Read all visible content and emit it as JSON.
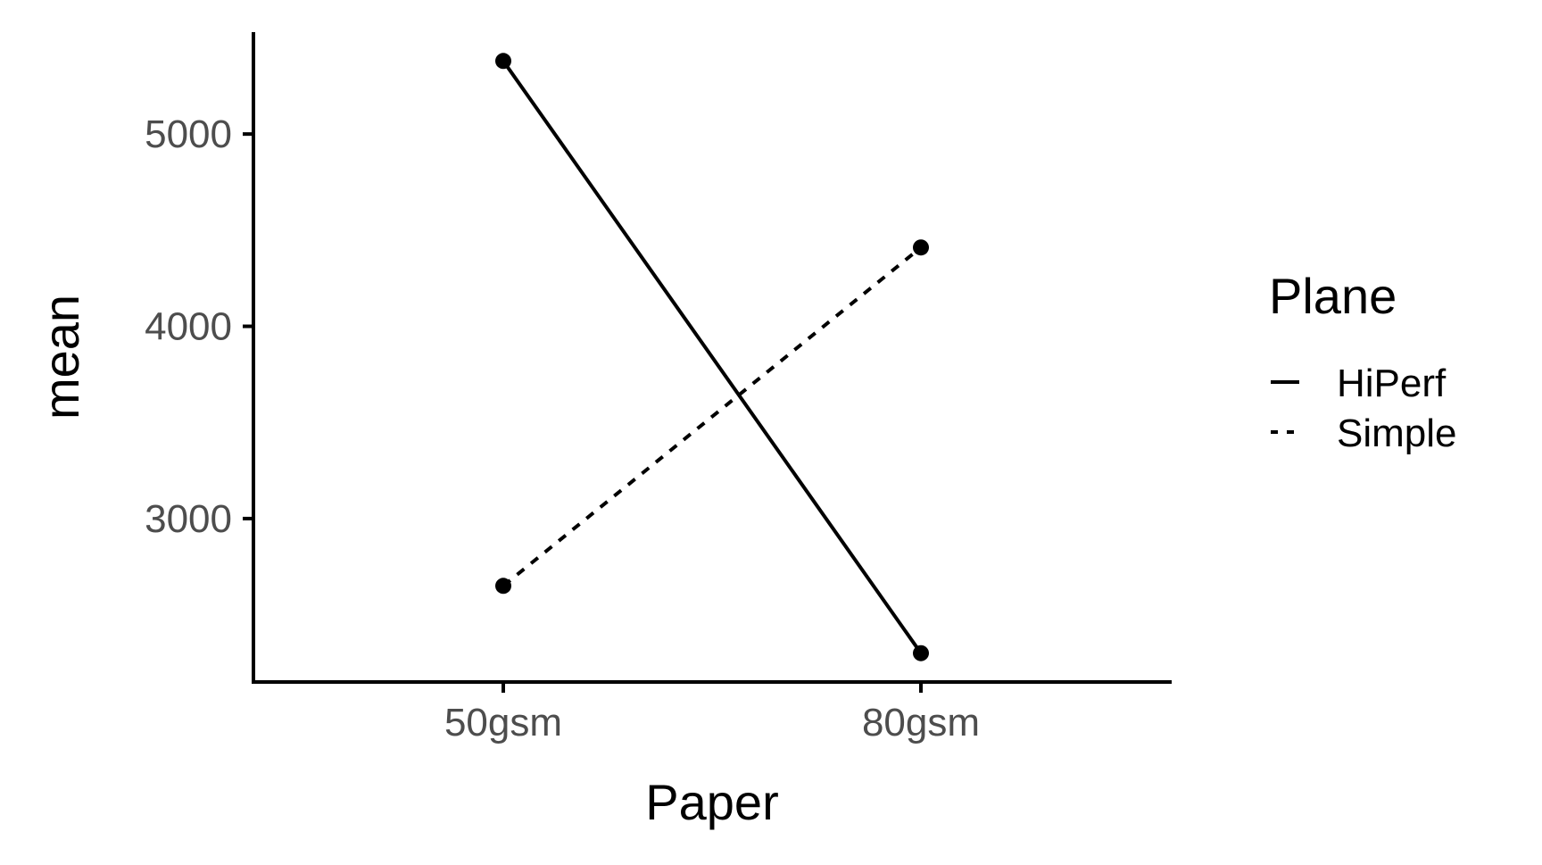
{
  "chart_data": {
    "type": "line",
    "title": "",
    "xlabel": "Paper",
    "ylabel": "mean",
    "categories": [
      "50gsm",
      "80gsm"
    ],
    "yticks": [
      3000,
      4000,
      5000
    ],
    "ylim": [
      2150,
      5530
    ],
    "grid": false,
    "legend": {
      "title": "Plane",
      "placement": "right"
    },
    "series": [
      {
        "name": "HiPerf",
        "linestyle": "solid",
        "values": [
          5380,
          2300
        ]
      },
      {
        "name": "Simple",
        "linestyle": "dotted",
        "values": [
          2650,
          4410
        ]
      }
    ],
    "colors": {
      "line": "#000000",
      "tick_label": "#4d4d4d",
      "axis": "#000000"
    }
  }
}
